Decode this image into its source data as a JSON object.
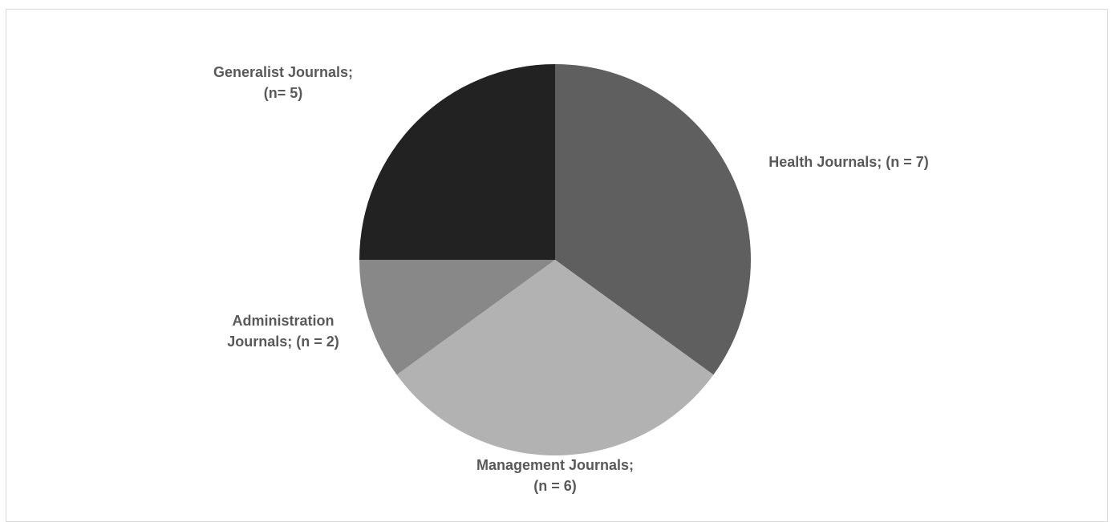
{
  "chart_data": {
    "type": "pie",
    "title": "",
    "slices": [
      {
        "label_lines": [
          "Health Journals; (n = 7)"
        ],
        "value": 7,
        "color": "#5f5f5f"
      },
      {
        "label_lines": [
          "Management Journals;",
          "(n = 6)"
        ],
        "value": 6,
        "color": "#b2b2b2"
      },
      {
        "label_lines": [
          "Administration",
          "Journals; (n = 2)"
        ],
        "value": 2,
        "color": "#888888"
      },
      {
        "label_lines": [
          "Generalist Journals;",
          "(n= 5)"
        ],
        "value": 5,
        "color": "#222222"
      }
    ],
    "start_angle": "12 o'clock",
    "direction": "clockwise",
    "legend": "none"
  }
}
